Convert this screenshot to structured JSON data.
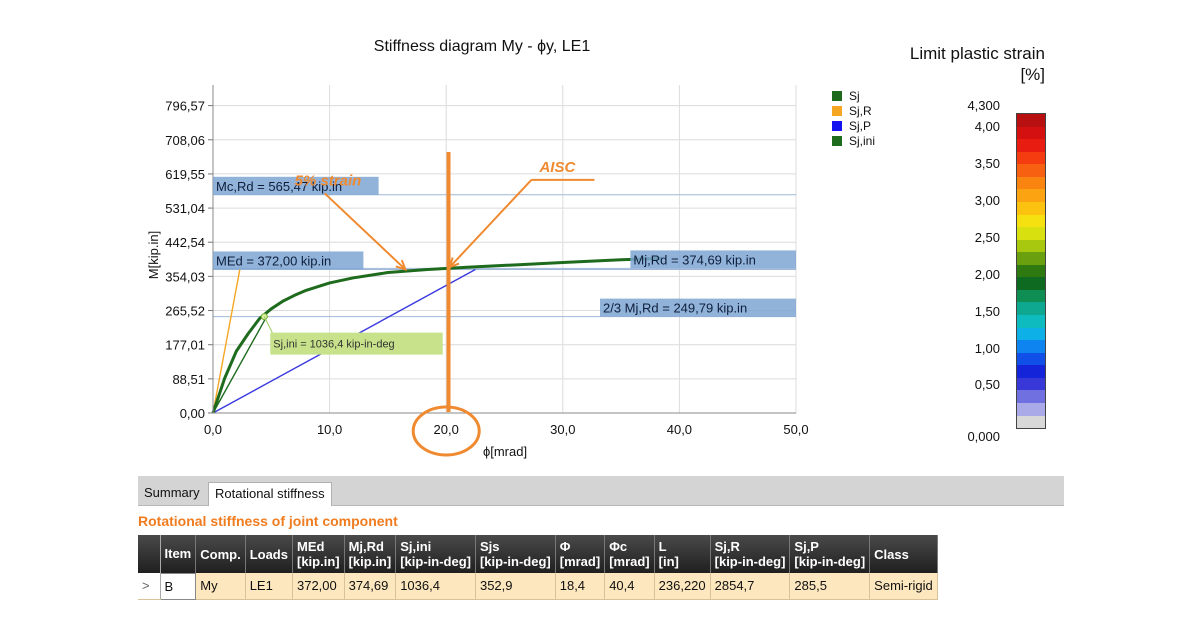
{
  "chart_data": {
    "type": "line",
    "title": "Stiffness diagram My - ϕy, LE1",
    "xlabel": "ϕ[mrad]",
    "ylabel": "M[kip.in]",
    "xlim": [
      0,
      50
    ],
    "ylim": [
      0,
      850
    ],
    "x_ticks": [
      0,
      10,
      20,
      30,
      40,
      50
    ],
    "x_tick_labels": [
      "0,0",
      "10,0",
      "20,0",
      "30,0",
      "40,0",
      "50,0"
    ],
    "y_ticks": [
      0,
      88.51,
      177.01,
      265.52,
      354.03,
      442.54,
      531.04,
      619.55,
      708.06,
      796.57
    ],
    "y_tick_labels": [
      "0,00",
      "88,51",
      "177,01",
      "265,52",
      "354,03",
      "442,54",
      "531,04",
      "619,55",
      "708,06",
      "796,57"
    ],
    "grid": true,
    "legend_position": "top-right",
    "series": [
      {
        "name": "Sj",
        "color": "#1e6b1e",
        "x": [
          0,
          1,
          2,
          3,
          4,
          5,
          6,
          7,
          8,
          10,
          12,
          15,
          18.4,
          22,
          26,
          30,
          35,
          38.5
        ],
        "y": [
          0,
          90,
          160,
          205,
          245,
          270,
          290,
          305,
          318,
          337,
          350,
          364,
          372,
          378,
          384,
          390,
          397,
          401
        ]
      },
      {
        "name": "Sj,R",
        "color": "#f5a623",
        "x": [
          0,
          2.3
        ],
        "y": [
          0,
          372
        ]
      },
      {
        "name": "Sj,P",
        "color": "#3a3adf",
        "x": [
          0,
          22.5
        ],
        "y": [
          0,
          372
        ]
      },
      {
        "name": "Sj,ini",
        "color": "#1e6b1e",
        "x": [
          0,
          4.6
        ],
        "y": [
          0,
          250
        ]
      }
    ],
    "horizontal_lines": [
      {
        "y": 565.47,
        "label": "Mc,Rd = 565,47 kip.in",
        "label_position": "left"
      },
      {
        "y": 374.69,
        "label": "Mj,Rd = 374,69 kip.in",
        "label_position": "right"
      },
      {
        "y": 372.0,
        "label": "MEd = 372,00 kip.in",
        "label_position": "left"
      },
      {
        "y": 249.79,
        "label": "2/3 Mj,Rd = 249,79 kip.in",
        "label_position": "right"
      }
    ],
    "point_label": {
      "x": 4.4,
      "y": 249.79,
      "text": "Sj,ini = 1036,4 kip-in-deg"
    },
    "annotations": [
      {
        "text": "5% strain",
        "text_x": 7,
        "text_y": 590,
        "arrow_x": 16.5,
        "arrow_y": 372
      },
      {
        "text": "AISC",
        "text_x": 28,
        "text_y": 625,
        "arrow_x": 20.3,
        "arrow_y": 378
      }
    ],
    "marker_line_x": 20.2,
    "circled_tick": 20
  },
  "scale": {
    "title": "Limit plastic strain",
    "unit": "[%]",
    "top_label": "4,300",
    "bottom_label": "0,000",
    "labels": [
      "4,00",
      "3,50",
      "3,00",
      "2,50",
      "2,00",
      "1,50",
      "1,00",
      "0,50"
    ],
    "colors": [
      "#b81010",
      "#d51010",
      "#e81c10",
      "#f53c10",
      "#f76010",
      "#f98410",
      "#fba310",
      "#fcc210",
      "#f5e010",
      "#d8e010",
      "#a8c810",
      "#6aa010",
      "#2e7a10",
      "#0e6a20",
      "#0e8e52",
      "#0ea890",
      "#0ebcc0",
      "#0eb0e8",
      "#0e84f0",
      "#1050e8",
      "#1424d8",
      "#3838d8",
      "#7070e0",
      "#aaaae8",
      "#d8d8d8"
    ]
  },
  "tabs": [
    {
      "label": "Summary"
    },
    {
      "label": "Rotational stiffness"
    }
  ],
  "section_title": "Rotational stiffness of joint component",
  "table": {
    "headers": [
      [
        "Item",
        ""
      ],
      [
        "Comp.",
        ""
      ],
      [
        "Loads",
        ""
      ],
      [
        "MEd",
        "[kip.in]"
      ],
      [
        "Mj,Rd",
        "[kip.in]"
      ],
      [
        "Sj,ini",
        "[kip-in-deg]"
      ],
      [
        "Sjs",
        "[kip-in-deg]"
      ],
      [
        "Φ",
        "[mrad]"
      ],
      [
        "Φc",
        "[mrad]"
      ],
      [
        "L",
        "[in]"
      ],
      [
        "Sj,R",
        "[kip-in-deg]"
      ],
      [
        "Sj,P",
        "[kip-in-deg]"
      ],
      [
        "Class",
        ""
      ]
    ],
    "rows": [
      [
        "B",
        "My",
        "LE1",
        "372,00",
        "374,69",
        "1036,4",
        "352,9",
        "18,4",
        "40,4",
        "236,220",
        "2854,7",
        "285,5",
        "Semi-rigid"
      ]
    ],
    "row_marker": ">"
  }
}
